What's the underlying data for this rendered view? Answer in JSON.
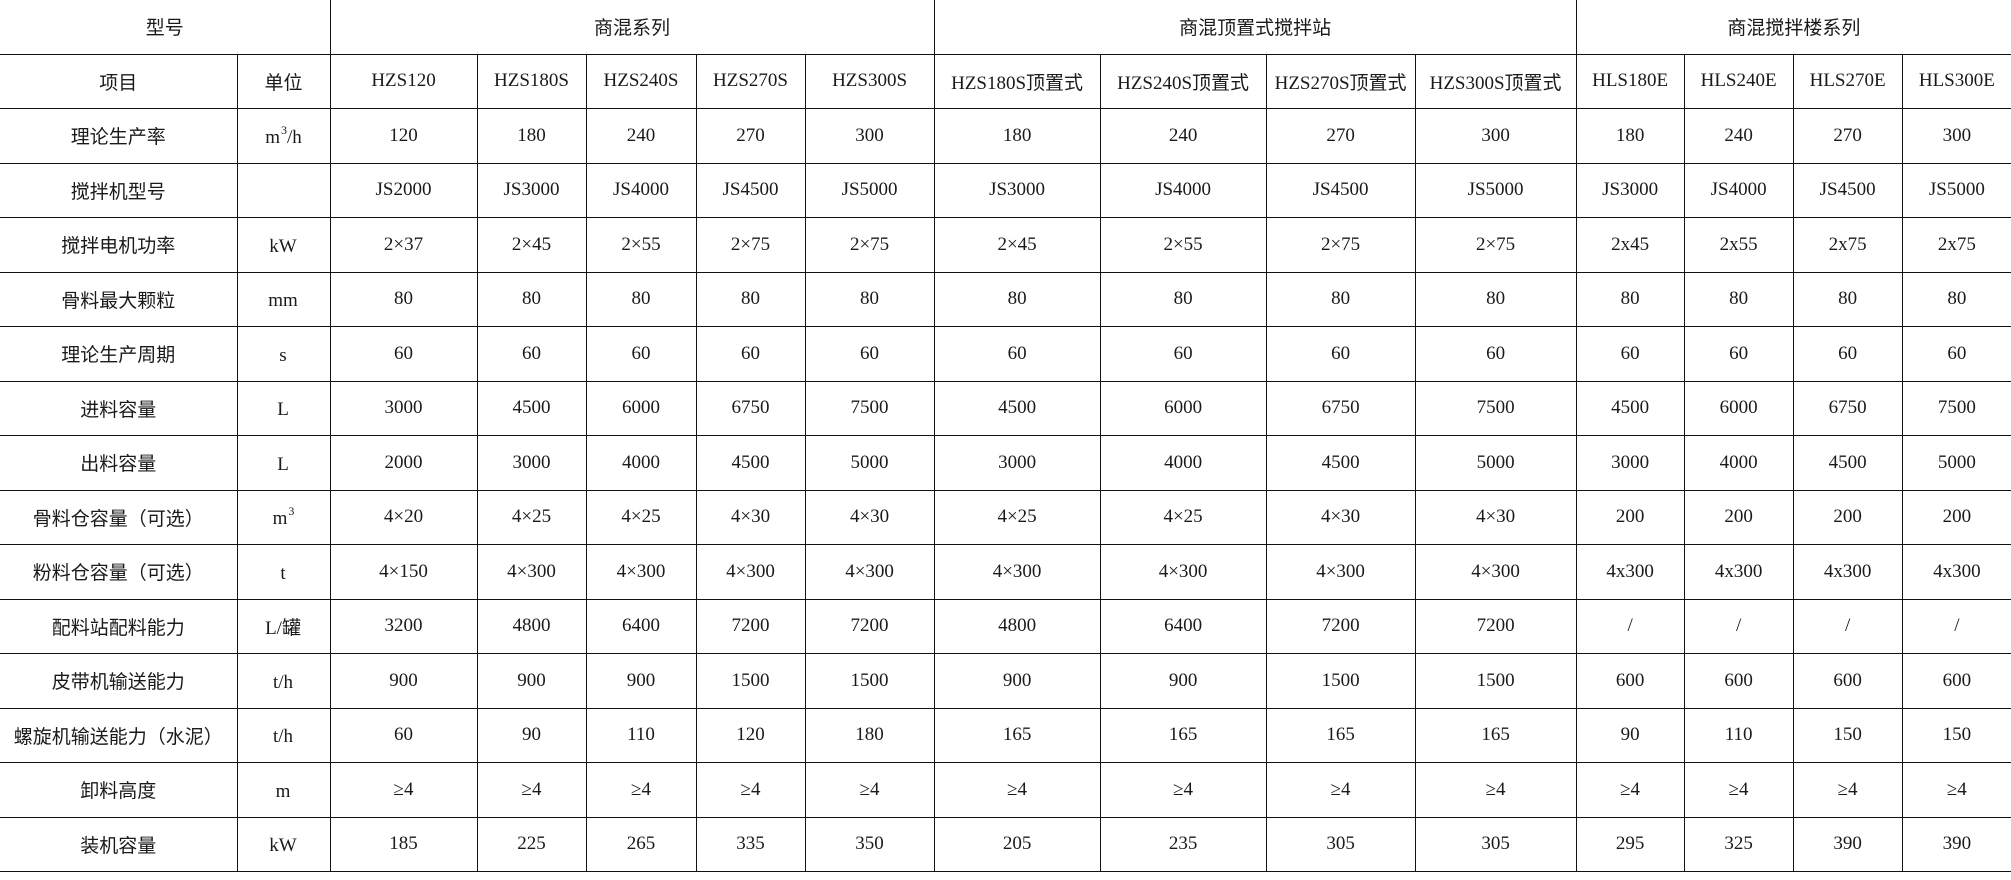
{
  "header": {
    "model_label": "型号",
    "groups": [
      "商混系列",
      "商混顶置式搅拌站",
      "商混搅拌楼系列"
    ]
  },
  "subheader": {
    "item_label": "项目",
    "unit_label": "单位",
    "models": [
      "HZS120",
      "HZS180S",
      "HZS240S",
      "HZS270S",
      "HZS300S",
      "HZS180S顶置式",
      "HZS240S顶置式",
      "HZS270S顶置式",
      "HZS300S顶置式",
      "HLS180E",
      "HLS240E",
      "HLS270E",
      "HLS300E"
    ]
  },
  "rows": [
    {
      "item": "理论生产率",
      "unit_base": "m",
      "unit_sup": "3",
      "unit_tail": "/h",
      "values": [
        "120",
        "180",
        "240",
        "270",
        "300",
        "180",
        "240",
        "270",
        "300",
        "180",
        "240",
        "270",
        "300"
      ]
    },
    {
      "item": "搅拌机型号",
      "unit_base": "",
      "unit_sup": "",
      "unit_tail": "",
      "values": [
        "JS2000",
        "JS3000",
        "JS4000",
        "JS4500",
        "JS5000",
        "JS3000",
        "JS4000",
        "JS4500",
        "JS5000",
        "JS3000",
        "JS4000",
        "JS4500",
        "JS5000"
      ]
    },
    {
      "item": "搅拌电机功率",
      "unit_base": "kW",
      "unit_sup": "",
      "unit_tail": "",
      "values": [
        "2×37",
        "2×45",
        "2×55",
        "2×75",
        "2×75",
        "2×45",
        "2×55",
        "2×75",
        "2×75",
        "2x45",
        "2x55",
        "2x75",
        "2x75"
      ]
    },
    {
      "item": "骨料最大颗粒",
      "unit_base": "mm",
      "unit_sup": "",
      "unit_tail": "",
      "values": [
        "80",
        "80",
        "80",
        "80",
        "80",
        "80",
        "80",
        "80",
        "80",
        "80",
        "80",
        "80",
        "80"
      ]
    },
    {
      "item": "理论生产周期",
      "unit_base": "s",
      "unit_sup": "",
      "unit_tail": "",
      "values": [
        "60",
        "60",
        "60",
        "60",
        "60",
        "60",
        "60",
        "60",
        "60",
        "60",
        "60",
        "60",
        "60"
      ]
    },
    {
      "item": "进料容量",
      "unit_base": "L",
      "unit_sup": "",
      "unit_tail": "",
      "values": [
        "3000",
        "4500",
        "6000",
        "6750",
        "7500",
        "4500",
        "6000",
        "6750",
        "7500",
        "4500",
        "6000",
        "6750",
        "7500"
      ]
    },
    {
      "item": "出料容量",
      "unit_base": "L",
      "unit_sup": "",
      "unit_tail": "",
      "values": [
        "2000",
        "3000",
        "4000",
        "4500",
        "5000",
        "3000",
        "4000",
        "4500",
        "5000",
        "3000",
        "4000",
        "4500",
        "5000"
      ]
    },
    {
      "item": "骨料仓容量（可选）",
      "unit_base": "m",
      "unit_sup": "3",
      "unit_tail": "",
      "values": [
        "4×20",
        "4×25",
        "4×25",
        "4×30",
        "4×30",
        "4×25",
        "4×25",
        "4×30",
        "4×30",
        "200",
        "200",
        "200",
        "200"
      ]
    },
    {
      "item": "粉料仓容量（可选）",
      "unit_base": "t",
      "unit_sup": "",
      "unit_tail": "",
      "values": [
        "4×150",
        "4×300",
        "4×300",
        "4×300",
        "4×300",
        "4×300",
        "4×300",
        "4×300",
        "4×300",
        "4x300",
        "4x300",
        "4x300",
        "4x300"
      ]
    },
    {
      "item": "配料站配料能力",
      "unit_base": "L/罐",
      "unit_sup": "",
      "unit_tail": "",
      "values": [
        "3200",
        "4800",
        "6400",
        "7200",
        "7200",
        "4800",
        "6400",
        "7200",
        "7200",
        "/",
        "/",
        "/",
        "/"
      ]
    },
    {
      "item": "皮带机输送能力",
      "unit_base": "t/h",
      "unit_sup": "",
      "unit_tail": "",
      "values": [
        "900",
        "900",
        "900",
        "1500",
        "1500",
        "900",
        "900",
        "1500",
        "1500",
        "600",
        "600",
        "600",
        "600"
      ]
    },
    {
      "item": "螺旋机输送能力（水泥）",
      "unit_base": "t/h",
      "unit_sup": "",
      "unit_tail": "",
      "values": [
        "60",
        "90",
        "110",
        "120",
        "180",
        "165",
        "165",
        "165",
        "165",
        "90",
        "110",
        "150",
        "150"
      ]
    },
    {
      "item": "卸料高度",
      "unit_base": "m",
      "unit_sup": "",
      "unit_tail": "",
      "values": [
        "≥4",
        "≥4",
        "≥4",
        "≥4",
        "≥4",
        "≥4",
        "≥4",
        "≥4",
        "≥4",
        "≥4",
        "≥4",
        "≥4",
        "≥4"
      ]
    },
    {
      "item": "装机容量",
      "unit_base": "kW",
      "unit_sup": "",
      "unit_tail": "",
      "values": [
        "185",
        "225",
        "265",
        "335",
        "350",
        "205",
        "235",
        "305",
        "305",
        "295",
        "325",
        "390",
        "390"
      ]
    }
  ]
}
